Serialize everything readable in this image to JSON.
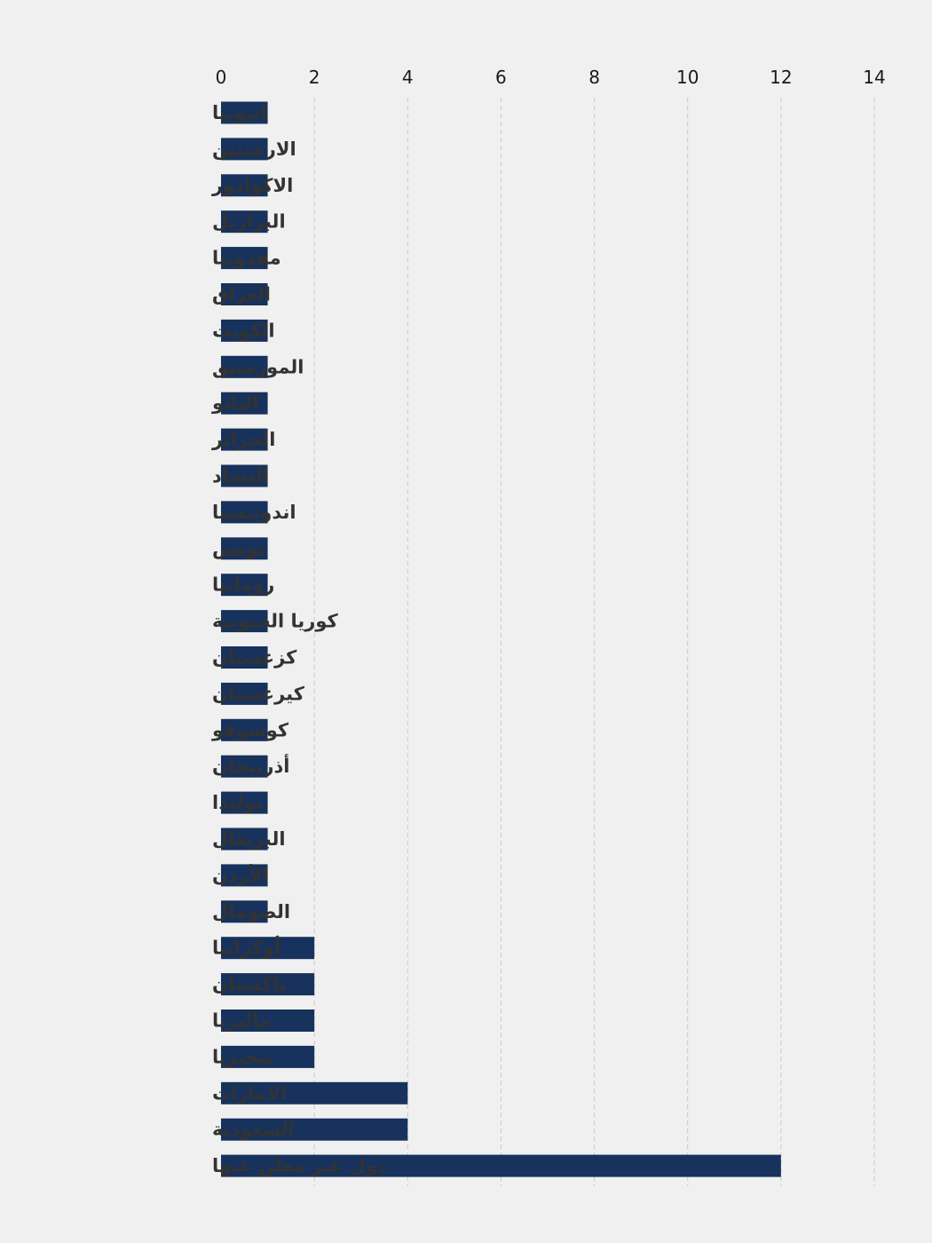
{
  "chart_data": {
    "type": "bar",
    "orientation": "horizontal",
    "title": "",
    "xlabel": "",
    "ylabel": "",
    "xlim": [
      0,
      14
    ],
    "x_ticks": [
      0,
      2,
      4,
      6,
      8,
      10,
      12,
      14
    ],
    "x_axis_position": "top",
    "grid": true,
    "legend": "none",
    "bar_color": "#17325c",
    "categories": [
      "اثيوبيا",
      "الارجنتين",
      "الاكوادور",
      "البرازيل",
      "مقدونيا",
      "العراق",
      "الكويت",
      "الموزمبيق",
      "الناتو",
      "الجزائر",
      "التشاد",
      "اندونيسيا",
      "تونس",
      "رومانيا",
      "كوريا الجنوبية",
      "كزغستان",
      "كيرغستان",
      "كوسوفو",
      "أذربيجان",
      "بولندا",
      "البرتغال",
      "الأردن",
      "الصومال",
      "أوكرانيا",
      "باكستان",
      "ماليزيا",
      "نيجيريا",
      "الامارات",
      "السعودية",
      "دول غير معلن عنها"
    ],
    "values": [
      1,
      1,
      1,
      1,
      1,
      1,
      1,
      1,
      1,
      1,
      1,
      1,
      1,
      1,
      1,
      1,
      1,
      1,
      1,
      1,
      1,
      1,
      1,
      2,
      2,
      2,
      2,
      4,
      4,
      12
    ]
  }
}
